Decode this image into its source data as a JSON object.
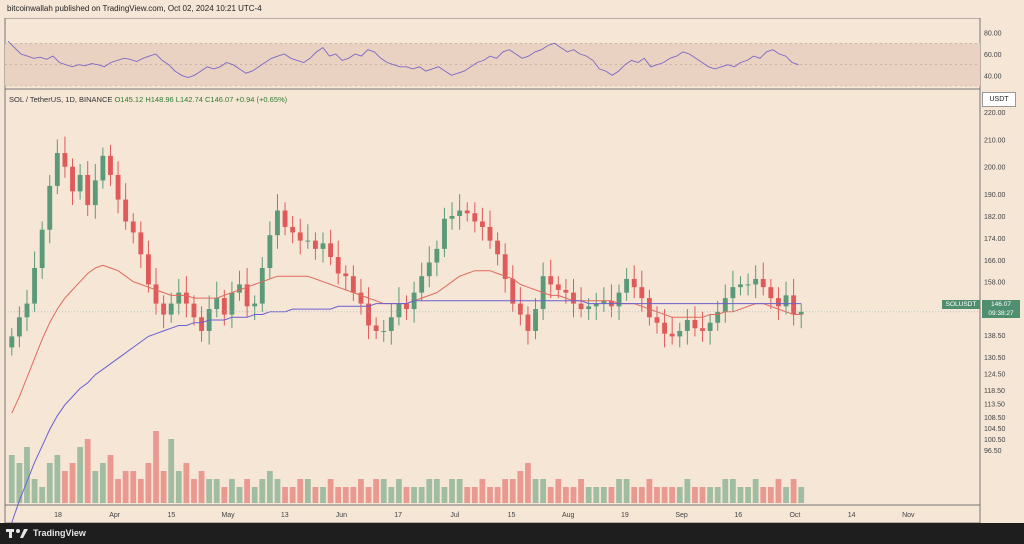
{
  "header": {
    "publisher": "bitcoinwallah published on TradingView.com, Oct 02, 2024 10:21 UTC-4"
  },
  "legend": {
    "symbol": "SOL / TetherUS, 1D, BINANCE",
    "open": "O145.12",
    "high": "H148.96",
    "low": "L142.74",
    "close": "C146.07",
    "change": "+0.94 (+0.65%)"
  },
  "currency_button": "USDT",
  "price_tag": {
    "symbol": "SOLUSDT",
    "price": "146.07",
    "countdown": "09:38:27"
  },
  "footer": {
    "brand": "TradingView"
  },
  "colors": {
    "background": "#f5e6d6",
    "up": "#5a9a78",
    "down": "#e05a5a",
    "ma_red": "#e06a5f",
    "ma_blue": "#6a5fd0",
    "rsi_line": "#7b68c7",
    "rsi_band": "#ead2c2"
  },
  "chart_data": [
    {
      "type": "line",
      "title": "RSI",
      "y_ticks": [
        "80.00",
        "60.00",
        "40.00"
      ],
      "ylim": [
        30,
        90
      ],
      "band": [
        30,
        70
      ],
      "values": [
        72,
        66,
        60,
        58,
        56,
        57,
        55,
        58,
        52,
        50,
        48,
        50,
        49,
        51,
        50,
        48,
        52,
        54,
        56,
        55,
        53,
        56,
        58,
        60,
        54,
        50,
        44,
        40,
        38,
        40,
        44,
        48,
        46,
        48,
        52,
        50,
        46,
        42,
        44,
        48,
        52,
        56,
        58,
        60,
        56,
        54,
        52,
        56,
        62,
        66,
        58,
        60,
        54,
        56,
        60,
        58,
        64,
        62,
        56,
        52,
        50,
        48,
        48,
        46,
        48,
        44,
        46,
        48,
        44,
        40,
        42,
        44,
        48,
        52,
        54,
        58,
        56,
        62,
        64,
        60,
        56,
        58,
        62,
        64,
        68,
        70,
        66,
        62,
        64,
        60,
        58,
        54,
        46,
        44,
        40,
        44,
        50,
        54,
        52,
        56,
        48,
        50,
        52,
        56,
        58,
        62,
        60,
        56,
        52,
        48,
        46,
        48,
        50,
        48,
        52,
        54,
        58,
        56,
        62,
        64,
        60,
        58,
        52,
        50
      ]
    },
    {
      "type": "candlestick",
      "title": "SOL / TetherUS, 1D, BINANCE",
      "y_ticks": [
        "220.00",
        "210.00",
        "200.00",
        "190.00",
        "182.00",
        "174.00",
        "166.00",
        "158.00",
        "150.00",
        "138.50",
        "130.50",
        "124.50",
        "118.50",
        "113.50",
        "108.50",
        "104.50",
        "100.50",
        "96.50"
      ],
      "x_ticks": [
        "18",
        "Apr",
        "15",
        "May",
        "13",
        "Jun",
        "17",
        "Jul",
        "15",
        "Aug",
        "19",
        "Sep",
        "16",
        "Oct",
        "14",
        "Nov"
      ],
      "close": [
        138,
        145,
        150,
        163,
        177,
        193,
        205,
        200,
        191,
        197,
        186,
        195,
        204,
        197,
        188,
        180,
        176,
        168,
        157,
        150,
        146,
        150,
        154,
        150,
        145,
        140,
        148,
        152,
        146,
        154,
        157,
        149,
        150,
        163,
        175,
        184,
        178,
        176,
        173,
        173,
        170,
        172,
        167,
        161,
        160,
        154,
        150,
        142,
        140,
        140,
        145,
        150,
        148,
        154,
        160,
        165,
        170,
        181,
        182,
        184,
        183,
        180,
        178,
        173,
        168,
        159,
        150,
        146,
        140,
        148,
        160,
        157,
        155,
        154,
        150,
        148,
        149,
        150,
        151,
        149,
        154,
        159,
        156,
        152,
        145,
        143,
        139,
        138,
        140,
        144,
        141,
        140,
        143,
        147,
        152,
        156,
        157,
        157,
        159,
        156,
        152,
        149,
        153,
        146,
        147
      ],
      "ma_red": [
        110,
        116,
        123,
        130,
        137,
        143,
        148,
        152,
        155,
        158,
        161,
        163,
        164,
        163,
        162,
        160,
        158,
        157,
        156,
        155,
        154,
        153,
        153,
        153,
        152,
        152,
        152,
        152,
        153,
        154,
        155,
        156,
        157,
        158,
        159,
        160,
        160,
        160,
        160,
        160,
        159,
        158,
        157,
        156,
        155,
        154,
        153,
        152,
        151,
        150,
        150,
        150,
        150,
        151,
        152,
        153,
        154,
        156,
        158,
        160,
        161,
        162,
        162,
        162,
        161,
        160,
        159,
        157,
        156,
        155,
        154,
        153,
        153,
        152,
        151,
        151,
        151,
        151,
        151,
        151,
        150,
        150,
        150,
        149,
        148,
        147,
        146,
        145,
        145,
        145,
        145,
        145,
        146,
        146,
        147,
        147,
        148,
        149,
        150,
        150,
        149,
        148,
        147,
        146,
        146
      ],
      "ma_blue": [
        70,
        78,
        85,
        92,
        98,
        104,
        109,
        113,
        116,
        119,
        121,
        124,
        126,
        128,
        130,
        132,
        134,
        136,
        138,
        139,
        140,
        141,
        142,
        142,
        143,
        143,
        144,
        144,
        144,
        145,
        145,
        145,
        146,
        146,
        147,
        147,
        147,
        148,
        148,
        148,
        148,
        148,
        148,
        149,
        149,
        149,
        149,
        149,
        150,
        150,
        150,
        150,
        150,
        151,
        151,
        151,
        151,
        151,
        151,
        151,
        151,
        151,
        151,
        151,
        151,
        151,
        151,
        151,
        151,
        151,
        151,
        151,
        151,
        151,
        151,
        151,
        150,
        150,
        150,
        150,
        150,
        150,
        150,
        150,
        150,
        150,
        150,
        150,
        150,
        150,
        150,
        150,
        150,
        150,
        150,
        150,
        150,
        150,
        150,
        150,
        150,
        150,
        150,
        150,
        150
      ]
    },
    {
      "type": "bar",
      "title": "Volume",
      "values": [
        6,
        5,
        7,
        3,
        2,
        5,
        6,
        4,
        5,
        7,
        8,
        4,
        5,
        6,
        3,
        4,
        4,
        3,
        5,
        9,
        4,
        8,
        4,
        5,
        3,
        4,
        3,
        3,
        2,
        3,
        2,
        3,
        2,
        3,
        4,
        3,
        2,
        2,
        3,
        3,
        2,
        2,
        3,
        2,
        2,
        2,
        3,
        2,
        3,
        3,
        2,
        3,
        2,
        2,
        2,
        3,
        3,
        2,
        3,
        3,
        2,
        2,
        3,
        2,
        2,
        3,
        3,
        4,
        5,
        3,
        3,
        2,
        3,
        2,
        2,
        3,
        2,
        2,
        2,
        2,
        3,
        3,
        2,
        2,
        3,
        2,
        2,
        2,
        2,
        3,
        2,
        2,
        2,
        2,
        3,
        3,
        2,
        2,
        3,
        2,
        2,
        3,
        2,
        3,
        2
      ]
    }
  ]
}
